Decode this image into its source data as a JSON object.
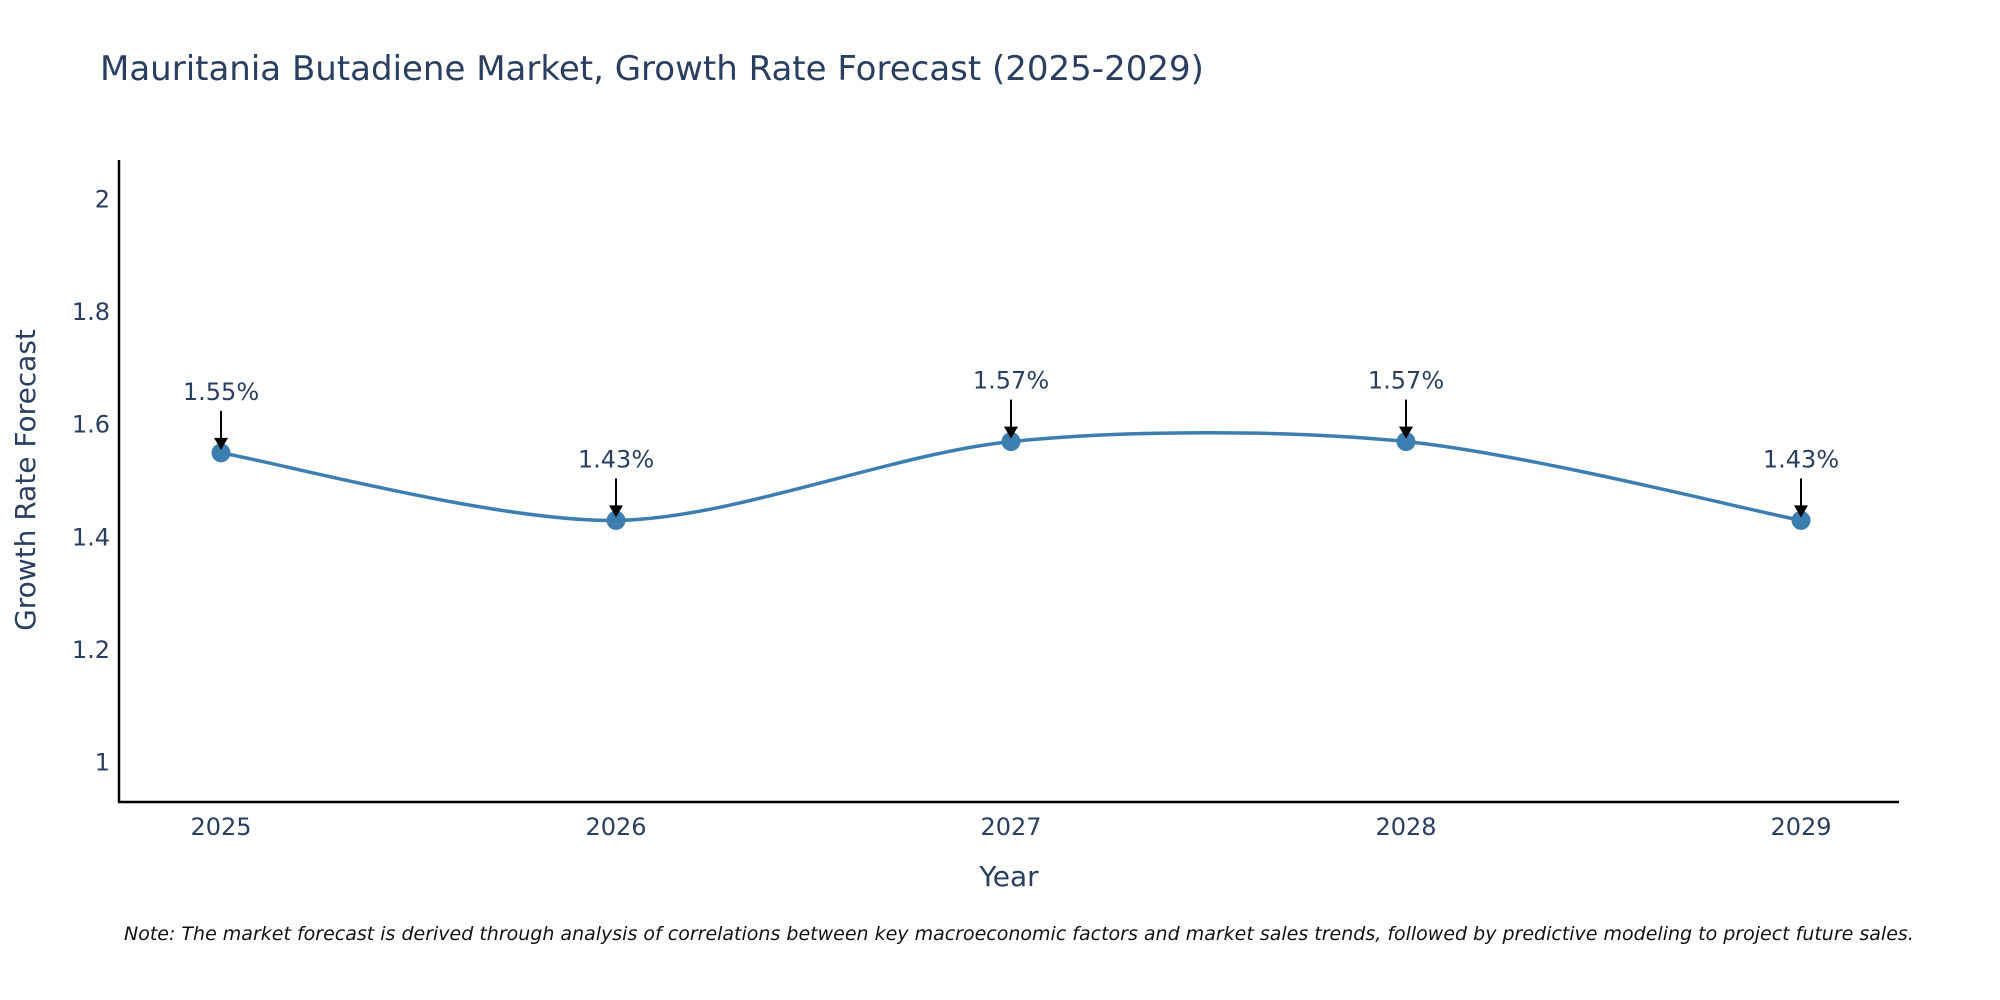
{
  "chart_data": {
    "type": "line",
    "title": "Mauritania Butadiene Market, Growth Rate Forecast (2025-2029)",
    "xlabel": "Year",
    "ylabel": "Growth Rate Forecast",
    "categories": [
      "2025",
      "2026",
      "2027",
      "2028",
      "2029"
    ],
    "series": [
      {
        "name": "Growth Rate Forecast",
        "values": [
          1.55,
          1.43,
          1.57,
          1.57,
          1.43
        ],
        "labels": [
          "1.55%",
          "1.43%",
          "1.57%",
          "1.57%",
          "1.43%"
        ],
        "color": "#3d7eb0"
      }
    ],
    "ylim": [
      0.93,
      2.07
    ],
    "yticks": [
      1,
      1.2,
      1.4,
      1.6,
      1.8,
      2
    ],
    "ytick_labels": [
      "1",
      "1.2",
      "1.4",
      "1.6",
      "1.8",
      "2"
    ],
    "grid": false
  },
  "note": "Note: The market forecast is derived through analysis of correlations between key macroeconomic factors and market sales trends, followed by predictive modeling to project future sales."
}
